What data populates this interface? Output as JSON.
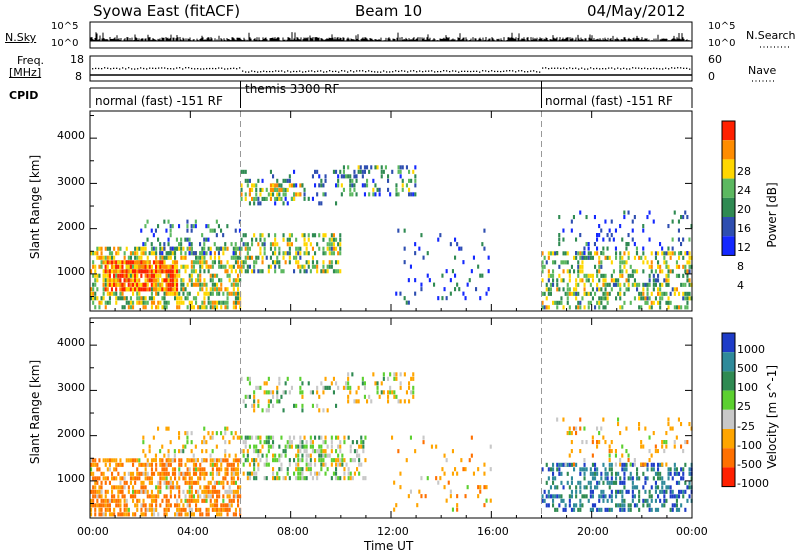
{
  "header": {
    "radar": "Syowa East (fitACF)",
    "beam": "Beam 10",
    "date": "04/May/2012"
  },
  "top_panels": {
    "nsky_label": "N.Sky",
    "nsky_ticks": [
      "10^5",
      "10^0"
    ],
    "nsearch_label": "N.Search",
    "nsearch_ticks": [
      "10^5",
      "10^0"
    ],
    "freq_label_1": "Freq.",
    "freq_label_2": "[MHz]",
    "freq_ticks": [
      "18",
      "8"
    ],
    "nave_label": "Nave",
    "nave_ticks": [
      "60",
      "0"
    ],
    "cpid_label": "CPID",
    "cpid_segments": [
      {
        "name": "normal (fast) -151 RF",
        "start_hour": 0,
        "end_hour": 6
      },
      {
        "name": "themis 3300 RF",
        "start_hour": 6,
        "end_hour": 18
      },
      {
        "name": "normal (fast) -151 RF",
        "start_hour": 18,
        "end_hour": 24
      }
    ]
  },
  "chart_data": [
    {
      "type": "heatmap",
      "panel": "power",
      "xlabel": "Time UT",
      "ylabel": "Slant Range [km]",
      "x_tick_labels": [
        "00:00",
        "04:00",
        "08:00",
        "12:00",
        "16:00",
        "20:00",
        "00:00"
      ],
      "x_tick_hours": [
        0,
        4,
        8,
        12,
        16,
        20,
        24
      ],
      "xlim_hours": [
        0,
        24
      ],
      "y_tick_labels": [
        "1000",
        "2000",
        "3000",
        "4000"
      ],
      "y_ticks": [
        1000,
        2000,
        3000,
        4000
      ],
      "ylim": [
        180,
        4600
      ],
      "colorbar": {
        "label": "Power [dB]",
        "ticks": [
          "4",
          "8",
          "12",
          "16",
          "20",
          "24",
          "28"
        ],
        "colors": [
          "#1428ff",
          "#2e4eb0",
          "#2f8a52",
          "#5cb860",
          "#ffd700",
          "#ff8c00",
          "#ff2000"
        ]
      },
      "regions": [
        {
          "t": [
            0.0,
            6.0
          ],
          "r": [
            250,
            1600
          ],
          "v": 16,
          "p": 0.55
        },
        {
          "t": [
            0.5,
            3.5
          ],
          "r": [
            650,
            1300
          ],
          "v": 24,
          "p": 0.8
        },
        {
          "t": [
            2.0,
            6.0
          ],
          "r": [
            1500,
            2200
          ],
          "v": 8,
          "p": 0.25
        },
        {
          "t": [
            6.0,
            10.0
          ],
          "r": [
            2600,
            3300
          ],
          "v": 6,
          "p": 0.18
        },
        {
          "t": [
            6.0,
            8.5
          ],
          "r": [
            2700,
            3000
          ],
          "v": 16,
          "p": 0.5
        },
        {
          "t": [
            6.0,
            10.0
          ],
          "r": [
            1100,
            1900
          ],
          "v": 14,
          "p": 0.45
        },
        {
          "t": [
            10.0,
            13.0
          ],
          "r": [
            2800,
            3400
          ],
          "v": 10,
          "p": 0.3
        },
        {
          "t": [
            12.0,
            16.0
          ],
          "r": [
            400,
            2000
          ],
          "v": 5,
          "p": 0.07
        },
        {
          "t": [
            18.0,
            24.0
          ],
          "r": [
            250,
            1500
          ],
          "v": 14,
          "p": 0.4
        },
        {
          "t": [
            18.5,
            24.0
          ],
          "r": [
            1500,
            2400
          ],
          "v": 6,
          "p": 0.12
        }
      ]
    },
    {
      "type": "heatmap",
      "panel": "velocity",
      "xlabel": "Time UT",
      "ylabel": "Slant Range [km]",
      "x_tick_labels": [
        "00:00",
        "04:00",
        "08:00",
        "12:00",
        "16:00",
        "20:00",
        "00:00"
      ],
      "x_tick_hours": [
        0,
        4,
        8,
        12,
        16,
        20,
        24
      ],
      "xlim_hours": [
        0,
        24
      ],
      "y_tick_labels": [
        "1000",
        "2000",
        "3000",
        "4000"
      ],
      "y_ticks": [
        1000,
        2000,
        3000,
        4000
      ],
      "ylim": [
        180,
        4600
      ],
      "colorbar": {
        "label": "Velocity [m s^-1]",
        "ticks": [
          "1000",
          "500",
          "100",
          "25",
          "-25",
          "-100",
          "-500",
          "-1000"
        ],
        "colors": [
          "#1e3cc8",
          "#2f8a9a",
          "#2f8a52",
          "#5cd030",
          "#c8c8c8",
          "#ffa500",
          "#ff7000",
          "#ff2000"
        ]
      },
      "regions": [
        {
          "t": [
            0.0,
            6.0
          ],
          "r": [
            250,
            1500
          ],
          "v": -300,
          "p": 0.6
        },
        {
          "t": [
            2.0,
            6.0
          ],
          "r": [
            1500,
            2200
          ],
          "v": -80,
          "p": 0.2
        },
        {
          "t": [
            6.0,
            10.0
          ],
          "r": [
            2600,
            3300
          ],
          "v": 0,
          "p": 0.2
        },
        {
          "t": [
            6.0,
            11.0
          ],
          "r": [
            1100,
            2000
          ],
          "v": 0,
          "p": 0.45
        },
        {
          "t": [
            10.0,
            13.0
          ],
          "r": [
            2800,
            3400
          ],
          "v": -60,
          "p": 0.25
        },
        {
          "t": [
            12.0,
            16.0
          ],
          "r": [
            400,
            2000
          ],
          "v": -200,
          "p": 0.07
        },
        {
          "t": [
            18.0,
            24.0
          ],
          "r": [
            400,
            1400
          ],
          "v": 600,
          "p": 0.45
        },
        {
          "t": [
            18.5,
            24.0
          ],
          "r": [
            1400,
            2400
          ],
          "v": -150,
          "p": 0.12
        }
      ]
    }
  ]
}
